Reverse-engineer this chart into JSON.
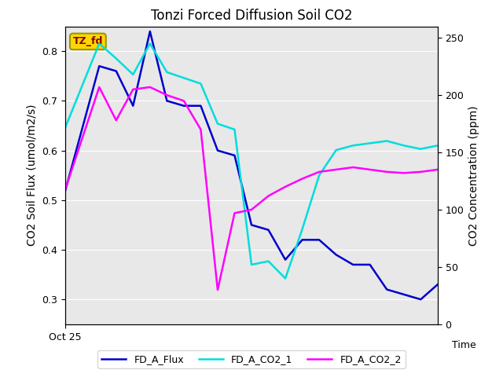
{
  "title": "Tonzi Forced Diffusion Soil CO2",
  "ylabel_left": "CO2 Soil Flux (umol/m2/s)",
  "ylabel_right": "CO2 Concentration (ppm)",
  "xlim": [
    0,
    22
  ],
  "ylim_left": [
    0.25,
    0.85
  ],
  "ylim_right": [
    0,
    260
  ],
  "x_tick_label": "Oct 25",
  "x_time_label": "Time",
  "legend_labels": [
    "FD_A_Flux",
    "FD_A_CO2_1",
    "FD_A_CO2_2"
  ],
  "legend_colors": [
    "#0000CD",
    "#00DDDD",
    "#FF00FF"
  ],
  "tag_text": "TZ_fd",
  "tag_facecolor": "#FFD700",
  "tag_edgecolor": "#999900",
  "tag_textcolor": "#8B0000",
  "background_color": "#E8E8E8",
  "fd_a_flux_x": [
    0,
    2,
    3,
    4,
    5,
    6,
    7,
    8,
    9,
    10,
    11,
    12,
    13,
    14,
    15,
    16,
    17,
    18,
    19,
    20,
    21,
    22
  ],
  "fd_a_flux_y": [
    0.52,
    0.77,
    0.76,
    0.69,
    0.84,
    0.7,
    0.69,
    0.69,
    0.6,
    0.59,
    0.45,
    0.44,
    0.38,
    0.42,
    0.42,
    0.39,
    0.37,
    0.37,
    0.32,
    0.31,
    0.3,
    0.33
  ],
  "fd_a_co2_1_x": [
    0,
    2,
    3,
    4,
    5,
    6,
    7,
    8,
    9,
    10,
    11,
    12,
    13,
    14,
    15,
    16,
    17,
    18,
    19,
    20,
    21,
    22
  ],
  "fd_a_co2_1_ppm": [
    172,
    245,
    232,
    218,
    245,
    220,
    215,
    210,
    175,
    170,
    52,
    55,
    40,
    83,
    130,
    152,
    156,
    158,
    160,
    156,
    153,
    156
  ],
  "fd_a_co2_2_x": [
    0,
    2,
    3,
    4,
    5,
    6,
    7,
    8,
    9,
    10,
    11,
    12,
    13,
    14,
    15,
    16,
    17,
    18,
    19,
    20,
    21,
    22
  ],
  "fd_a_co2_2_ppm": [
    118,
    207,
    178,
    205,
    207,
    200,
    195,
    170,
    30,
    97,
    100,
    112,
    120,
    127,
    133,
    135,
    137,
    135,
    133,
    132,
    133,
    135
  ],
  "grid_color": "#FFFFFF",
  "line_width": 1.8
}
